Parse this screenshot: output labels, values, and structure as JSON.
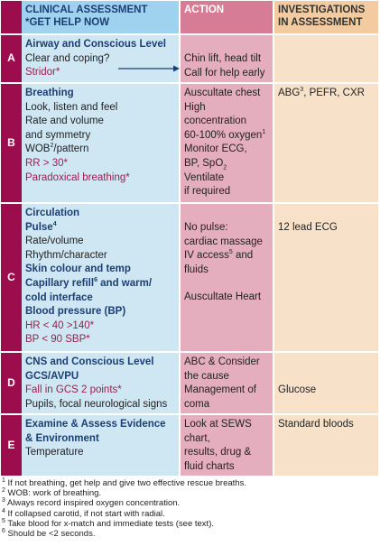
{
  "header": {
    "col1_line1": "CLINICAL ASSESSMENT",
    "col1_line2": "*GET HELP NOW",
    "col2": "ACTION",
    "col3_line1": "INVESTIGATIONS",
    "col3_line2": "IN ASSESSMENT"
  },
  "rows": {
    "a": {
      "letter": "A",
      "title": "Airway and Conscious Level",
      "l1": "Clear and coping?",
      "l2": "Stridor*",
      "action1": "Chin lift, head tilt",
      "action2": "Call for help early"
    },
    "b": {
      "letter": "B",
      "title": "Breathing",
      "l1": "Look, listen and feel",
      "l2": "Rate and volume",
      "l3": "and symmetry",
      "l4a": "WOB",
      "l4sup": "2",
      "l4b": "/pattern",
      "l5": "RR > 30*",
      "l6": "Paradoxical breathing*",
      "action1": "Auscultate chest",
      "action2": "High",
      "action3": "concentration",
      "action4a": "60-100% oxygen",
      "action4sup": "1",
      "action5": "Monitor ECG,",
      "action6a": "BP, SpO",
      "action6sub": "2",
      "action7": "Ventilate",
      "action8": "if required",
      "inv_a": "ABG",
      "inv_sup": "3",
      "inv_b": ", PEFR, CXR"
    },
    "c": {
      "letter": "C",
      "title": "Circulation",
      "pulse": "Pulse",
      "pulse_sup": "4",
      "l1": "Rate/volume",
      "l2": "Rhythm/character",
      "skin": "Skin colour and temp",
      "cap_a": "Capillary refill",
      "cap_sup": "6",
      "cap_b": " and warm/",
      "cold": "cold interface",
      "bp": "Blood pressure (BP)",
      "hr": "HR < 40 >140*",
      "sbp": "BP < 90 SBP*",
      "action1": "No pulse:",
      "action2": "cardiac massage",
      "action3a": "IV access",
      "action3sup": "5",
      "action3b": " and",
      "action4": "fluids",
      "action5": "Auscultate Heart",
      "inv": "12 lead ECG"
    },
    "d": {
      "letter": "D",
      "title": "CNS and Conscious Level",
      "title2": "GCS/AVPU",
      "l1": "Fall in GCS 2 points*",
      "l2": "Pupils, focal neurological signs",
      "action1": "ABC & Consider",
      "action2": "the cause",
      "action3": "Management of",
      "action4": "coma",
      "inv": "Glucose"
    },
    "e": {
      "letter": "E",
      "title": "Examine & Assess Evidence",
      "title2": "& Environment",
      "l1": "Temperature",
      "action1": "Look at SEWS",
      "action2": "chart,",
      "action3": "results, drug &",
      "action4": "fluid charts",
      "inv": "Standard bloods"
    }
  },
  "footnotes": [
    {
      "n": "1",
      "text": " If not breathing, get help and give two effective rescue breaths."
    },
    {
      "n": "2",
      "text": " WOB: work of breathing."
    },
    {
      "n": "3",
      "text": " Always record inspired oxygen concentration."
    },
    {
      "n": "4",
      "text": " If collapsed carotid, if not start with radial."
    },
    {
      "n": "5",
      "text": " Take blood for x-match and immediate tests (see text)."
    },
    {
      "n": "6",
      "text": " Should be <2 seconds."
    }
  ],
  "colors": {
    "letter_col": "#9b0d4c",
    "assessment_col": "#cfe6f3",
    "action_col": "#e4aebe",
    "investigation_col": "#f7e2c9",
    "title_text": "#1c3f73",
    "warning_text": "#9b1f4f"
  }
}
